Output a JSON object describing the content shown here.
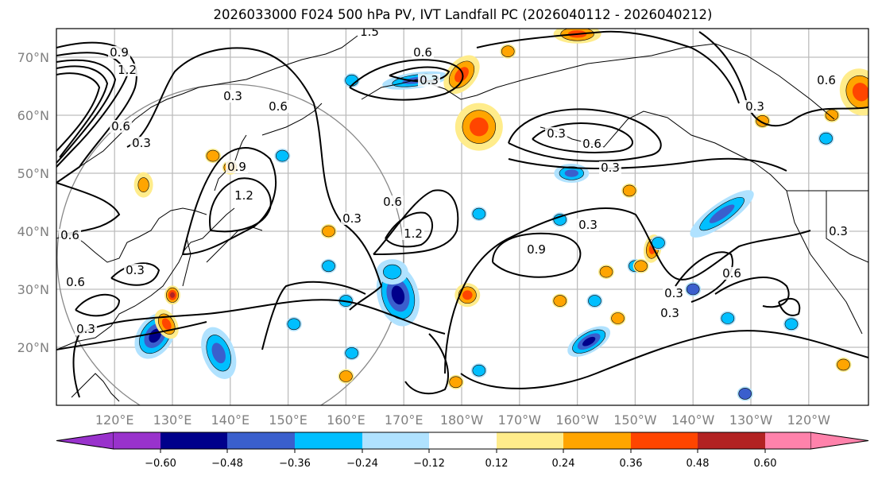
{
  "title": "2026033000 F024 500 hPa PV, IVT Landfall PC (2026040112 - 2026040212)",
  "chart_data": {
    "type": "heatmap",
    "title": "2026033000 F024 500 hPa PV, IVT Landfall PC (2026040112 - 2026040212)",
    "xlabel": "",
    "ylabel": "",
    "grid": true,
    "x_ticks": [
      "120°E",
      "130°E",
      "140°E",
      "150°E",
      "160°E",
      "170°E",
      "180°W",
      "170°W",
      "160°W",
      "150°W",
      "140°W",
      "130°W",
      "120°W"
    ],
    "x_tick_values": [
      120,
      130,
      140,
      150,
      160,
      170,
      180,
      190,
      200,
      210,
      220,
      230,
      240
    ],
    "y_ticks": [
      "70°N",
      "60°N",
      "50°N",
      "40°N",
      "30°N",
      "20°N"
    ],
    "y_tick_values": [
      70,
      60,
      50,
      40,
      30,
      20
    ],
    "xlim": [
      116,
      256
    ],
    "ylim": [
      10,
      75
    ],
    "colorbar": {
      "levels": [
        "-0.60",
        "-0.48",
        "-0.36",
        "-0.24",
        "-0.12",
        "0.12",
        "0.24",
        "0.36",
        "0.48",
        "0.60"
      ],
      "colors": [
        "#9932CC",
        "#00008B",
        "#3A5FCD",
        "#00BFFF",
        "#B0E2FF",
        "#FFFFFF",
        "#FFEC8B",
        "#FFA500",
        "#FF4500",
        "#B22222",
        "#FF82AB"
      ],
      "extend": "both"
    },
    "contour_labels": [
      "0.9",
      "1.2",
      "0.3",
      "0.6",
      "0.3",
      "0.6",
      "0.3",
      "0.6",
      "0.3",
      "0.6",
      "0.9",
      "1.2",
      "0.3",
      "0.6",
      "1.2",
      "1.5",
      "0.6",
      "0.3",
      "0.3",
      "0.6",
      "0.3",
      "0.3",
      "0.9",
      "0.6",
      "0.3",
      "0.3",
      "0.6",
      "0.3",
      "0.3"
    ],
    "shaded_regions": [
      {
        "lon": 127,
        "lat": 22,
        "value": -0.55
      },
      {
        "lon": 138,
        "lat": 19,
        "value": -0.45
      },
      {
        "lon": 169,
        "lat": 29,
        "value": -0.55
      },
      {
        "lon": 168,
        "lat": 33,
        "value": -0.3
      },
      {
        "lon": 202,
        "lat": 21,
        "value": -0.55
      },
      {
        "lon": 172,
        "lat": 66,
        "value": -0.45
      },
      {
        "lon": 225,
        "lat": 43,
        "value": -0.45
      },
      {
        "lon": 199,
        "lat": 50,
        "value": -0.45
      },
      {
        "lon": 180,
        "lat": 67,
        "value": 0.4
      },
      {
        "lon": 183,
        "lat": 58,
        "value": 0.4
      },
      {
        "lon": 181,
        "lat": 29,
        "value": 0.4
      },
      {
        "lon": 130,
        "lat": 29,
        "value": 0.5
      },
      {
        "lon": 249,
        "lat": 64,
        "value": 0.4
      },
      {
        "lon": 213,
        "lat": 37,
        "value": 0.4
      },
      {
        "lon": 129,
        "lat": 24,
        "value": 0.4
      },
      {
        "lon": 125,
        "lat": 48,
        "value": 0.3
      },
      {
        "lon": 200,
        "lat": 74,
        "value": 0.4
      }
    ]
  }
}
